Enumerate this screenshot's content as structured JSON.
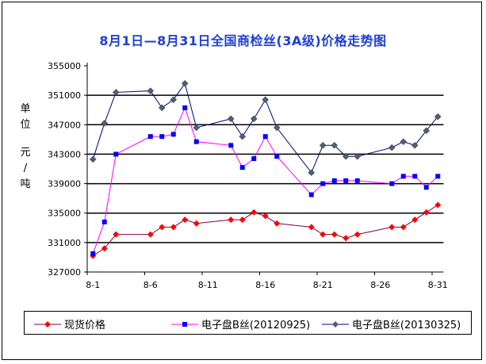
{
  "chart_data": {
    "type": "line",
    "title": "8月1日—8月31日全国商检丝(3A级)价格走势图",
    "ylabel": "单位 元/吨",
    "ylabel_chars": [
      "单",
      "位",
      "元",
      "/",
      "吨"
    ],
    "xlabel": "",
    "ylim": [
      327000,
      355000
    ],
    "yticks": [
      327000,
      331000,
      335000,
      339000,
      343000,
      347000,
      351000,
      355000
    ],
    "ytick_labels": [
      "327000",
      "331000",
      "335000",
      "339000",
      "343000",
      "347000",
      "351000",
      "355000"
    ],
    "xtick_labels": [
      "8-1",
      "8-6",
      "8-11",
      "8-16",
      "8-21",
      "8-26",
      "8-31"
    ],
    "grid": true,
    "legend": "bottom",
    "x": [
      "8-1",
      "8-2",
      "8-3",
      "8-6",
      "8-7",
      "8-8",
      "8-9",
      "8-10",
      "8-13",
      "8-14",
      "8-15",
      "8-16",
      "8-17",
      "8-20",
      "8-21",
      "8-22",
      "8-23",
      "8-24",
      "8-27",
      "8-28",
      "8-29",
      "8-30",
      "8-31"
    ],
    "series": [
      {
        "name": "现货价格",
        "line_color": "#800040",
        "marker_color": "#ff0000",
        "marker": "diamond",
        "values": [
          329200,
          330200,
          332100,
          332100,
          333100,
          333100,
          334100,
          333600,
          334100,
          334100,
          335100,
          334600,
          333600,
          333100,
          332100,
          332100,
          331600,
          332100,
          333100,
          333100,
          334100,
          335100,
          336100
        ]
      },
      {
        "name": "电子盘B丝(20120925)",
        "line_color": "#ff00ff",
        "marker_color": "#0000ff",
        "marker": "square",
        "values": [
          329500,
          333800,
          343000,
          345400,
          345400,
          345700,
          349300,
          344700,
          344200,
          341200,
          342400,
          345400,
          342700,
          337500,
          339000,
          339400,
          339400,
          339400,
          339000,
          340000,
          340000,
          338500,
          340000
        ]
      },
      {
        "name": "电子盘B丝(20130325)",
        "line_color": "#000080",
        "marker_color": "#506070",
        "marker": "diamond",
        "values": [
          342300,
          347200,
          351400,
          351600,
          349300,
          350400,
          352600,
          346600,
          347800,
          345400,
          347800,
          350400,
          346600,
          340500,
          344200,
          344200,
          342700,
          342700,
          343900,
          344700,
          344200,
          346200,
          348100
        ]
      }
    ]
  }
}
